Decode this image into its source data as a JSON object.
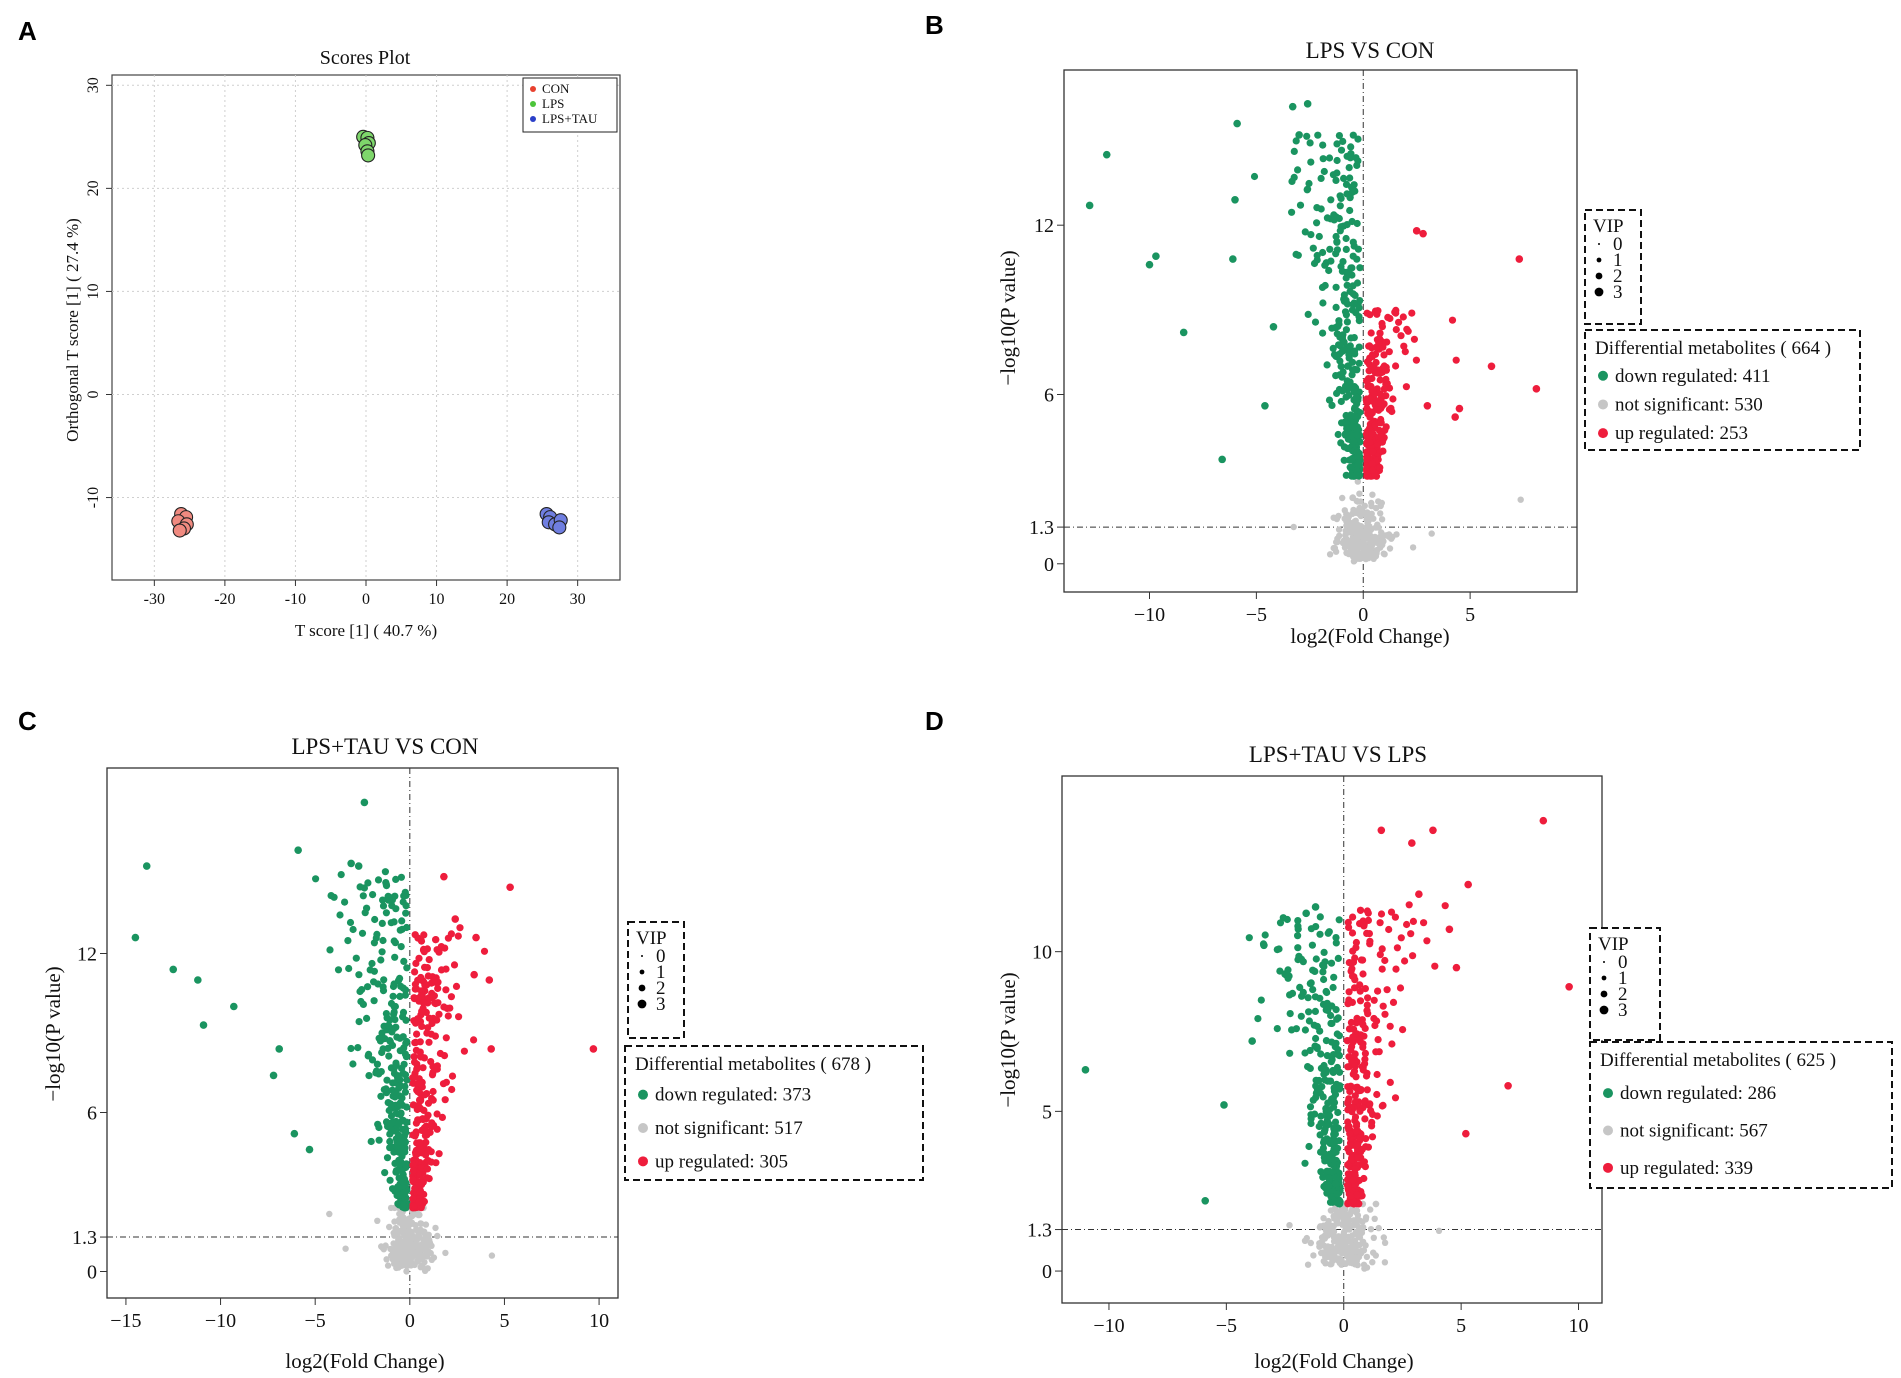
{
  "panels": [
    {
      "letter": "A",
      "type": "scatter",
      "title": "Scores Plot",
      "xlabel": "T score [1] ( 40.7 %)",
      "ylabel": "Orthogonal T score [1] ( 27.4 %)",
      "xlim": [
        -36,
        36
      ],
      "ylim": [
        -18,
        31
      ],
      "xticks": [
        -30,
        -20,
        -10,
        0,
        10,
        20,
        30
      ],
      "yticks": [
        -10,
        0,
        10,
        20,
        30
      ],
      "legend": [
        {
          "label": "CON",
          "color": "#e8412f"
        },
        {
          "label": "LPS",
          "color": "#4cc43a"
        },
        {
          "label": "LPS+TAU",
          "color": "#2b3fc8"
        }
      ],
      "groups": [
        {
          "name": "CON",
          "fill": "#f08a80",
          "points": [
            [
              -26.2,
              -11.6
            ],
            [
              -25.5,
              -11.9
            ],
            [
              -26.6,
              -12.3
            ],
            [
              -25.4,
              -12.6
            ],
            [
              -25.8,
              -13.0
            ],
            [
              -26.4,
              -13.2
            ]
          ]
        },
        {
          "name": "LPS",
          "fill": "#7ed66b",
          "points": [
            [
              -0.4,
              25.0
            ],
            [
              0.2,
              24.9
            ],
            [
              0.4,
              24.4
            ],
            [
              -0.1,
              24.2
            ],
            [
              0.2,
              23.6
            ],
            [
              0.3,
              23.2
            ]
          ]
        },
        {
          "name": "LPS+TAU",
          "fill": "#6f7ee0",
          "points": [
            [
              25.6,
              -11.6
            ],
            [
              26.1,
              -11.9
            ],
            [
              25.9,
              -12.4
            ],
            [
              26.8,
              -12.6
            ],
            [
              27.6,
              -12.2
            ],
            [
              27.4,
              -12.9
            ]
          ]
        }
      ]
    },
    {
      "letter": "B",
      "type": "volcano",
      "title": "LPS VS CON",
      "xlabel": "log2(Fold Change)",
      "ylabel": "−log10(P value)",
      "xlim": [
        -14,
        10
      ],
      "ylim": [
        -1,
        17.5
      ],
      "xticks": [
        -10,
        -5,
        0,
        5
      ],
      "yticks": [
        0,
        1.3,
        6,
        12
      ],
      "yticklabels": [
        "0",
        "1.3",
        "6",
        "12"
      ],
      "vip": {
        "title": "VIP",
        "sizes": [
          "0",
          "1",
          "2",
          "3"
        ]
      },
      "legend_title": "Differential metabolites ( 664 )",
      "categories": [
        {
          "label": "down regulated: 411",
          "name": "down regulated",
          "count": 411,
          "color": "#1a9460"
        },
        {
          "label": "not significant: 530",
          "name": "not significant",
          "count": 530,
          "color": "#c6c6c6"
        },
        {
          "label": "up regulated: 253",
          "name": "up regulated",
          "count": 253,
          "color": "#ee1d3c"
        }
      ],
      "cloud": {
        "down_ymax": 15.2,
        "up_ymax": 9.0,
        "down_xspread": 3.2,
        "up_xspread": 1.8,
        "sig_ymin": 3.1
      },
      "outliers": {
        "down": [
          [
            -12.8,
            12.7
          ],
          [
            -12.0,
            14.5
          ],
          [
            -10.0,
            10.6
          ],
          [
            -9.7,
            10.9
          ],
          [
            -8.4,
            8.2
          ],
          [
            -6.6,
            3.7
          ],
          [
            -6.0,
            12.9
          ],
          [
            -5.9,
            15.6
          ],
          [
            -6.1,
            10.8
          ],
          [
            -4.2,
            8.4
          ],
          [
            -4.6,
            5.6
          ],
          [
            -3.3,
            16.2
          ],
          [
            -2.6,
            16.3
          ],
          [
            -3.0,
            15.2
          ]
        ],
        "up": [
          [
            2.5,
            11.8
          ],
          [
            2.8,
            11.7
          ],
          [
            7.3,
            10.8
          ],
          [
            6.0,
            7.0
          ],
          [
            8.1,
            6.2
          ],
          [
            4.5,
            5.5
          ],
          [
            4.3,
            5.2
          ],
          [
            3.0,
            5.6
          ]
        ]
      }
    },
    {
      "letter": "C",
      "type": "volcano",
      "title": "LPS+TAU VS CON",
      "xlabel": "log2(Fold Change)",
      "ylabel": "−log10(P value)",
      "xlim": [
        -16,
        11
      ],
      "ylim": [
        -1,
        19
      ],
      "xticks": [
        -15,
        -10,
        -5,
        0,
        5,
        10
      ],
      "yticks": [
        0,
        1.3,
        6,
        12
      ],
      "yticklabels": [
        "0",
        "1.3",
        "6",
        "12"
      ],
      "vip": {
        "title": "VIP",
        "sizes": [
          "0",
          "1",
          "2",
          "3"
        ]
      },
      "legend_title": "Differential metabolites ( 678 )",
      "categories": [
        {
          "label": "down regulated: 373",
          "name": "down regulated",
          "count": 373,
          "color": "#1a9460"
        },
        {
          "label": "not significant: 517",
          "name": "not significant",
          "count": 517,
          "color": "#c6c6c6"
        },
        {
          "label": "up regulated: 305",
          "name": "up regulated",
          "count": 305,
          "color": "#ee1d3c"
        }
      ],
      "cloud": {
        "down_ymax": 15.2,
        "up_ymax": 13.0,
        "down_xspread": 3.8,
        "up_xspread": 2.8,
        "sig_ymin": 2.4
      },
      "outliers": {
        "down": [
          [
            -14.5,
            12.6
          ],
          [
            -13.9,
            15.3
          ],
          [
            -12.5,
            11.4
          ],
          [
            -11.2,
            11.0
          ],
          [
            -10.9,
            9.3
          ],
          [
            -9.3,
            10.0
          ],
          [
            -7.2,
            7.4
          ],
          [
            -6.9,
            8.4
          ],
          [
            -6.1,
            5.2
          ],
          [
            -5.9,
            15.9
          ],
          [
            -5.3,
            4.6
          ],
          [
            -2.4,
            17.7
          ],
          [
            -3.1,
            15.4
          ],
          [
            -2.7,
            15.3
          ]
        ],
        "up": [
          [
            1.8,
            14.9
          ],
          [
            5.3,
            14.5
          ],
          [
            4.2,
            11.0
          ],
          [
            3.4,
            11.2
          ],
          [
            9.7,
            8.4
          ],
          [
            4.3,
            8.4
          ],
          [
            2.4,
            13.3
          ],
          [
            3.5,
            12.6
          ]
        ]
      }
    },
    {
      "letter": "D",
      "type": "volcano",
      "title": "LPS+TAU VS LPS",
      "xlabel": "log2(Fold Change)",
      "ylabel": "−log10(P value)",
      "xlim": [
        -12,
        11
      ],
      "ylim": [
        -1,
        15.5
      ],
      "xticks": [
        -10,
        -5,
        0,
        5,
        10
      ],
      "yticks": [
        0,
        1.3,
        5,
        10
      ],
      "yticklabels": [
        "0",
        "1.3",
        "5",
        "10"
      ],
      "vip": {
        "title": "VIP",
        "sizes": [
          "0",
          "1",
          "2",
          "3"
        ]
      },
      "legend_title": "Differential metabolites ( 625 )",
      "categories": [
        {
          "label": "down regulated: 286",
          "name": "down regulated",
          "count": 286,
          "color": "#1a9460"
        },
        {
          "label": "not significant: 567",
          "name": "not significant",
          "count": 567,
          "color": "#c6c6c6"
        },
        {
          "label": "up regulated: 339",
          "name": "up regulated",
          "count": 339,
          "color": "#ee1d3c"
        }
      ],
      "cloud": {
        "down_ymax": 11.2,
        "up_ymax": 11.5,
        "down_xspread": 2.9,
        "up_xspread": 2.5,
        "sig_ymin": 2.1
      },
      "outliers": {
        "down": [
          [
            -11.0,
            6.3
          ],
          [
            -5.9,
            2.2
          ],
          [
            -5.1,
            5.2
          ],
          [
            -3.9,
            7.2
          ],
          [
            -3.4,
            10.2
          ],
          [
            -1.2,
            11.4
          ],
          [
            -1.6,
            11.2
          ],
          [
            -2.5,
            9.3
          ]
        ],
        "up": [
          [
            1.6,
            13.8
          ],
          [
            3.8,
            13.8
          ],
          [
            2.9,
            13.4
          ],
          [
            8.5,
            14.1
          ],
          [
            5.3,
            12.1
          ],
          [
            3.2,
            11.8
          ],
          [
            9.6,
            8.9
          ],
          [
            7.0,
            5.8
          ],
          [
            5.2,
            4.3
          ],
          [
            4.5,
            10.7
          ],
          [
            4.8,
            9.5
          ]
        ]
      }
    }
  ]
}
